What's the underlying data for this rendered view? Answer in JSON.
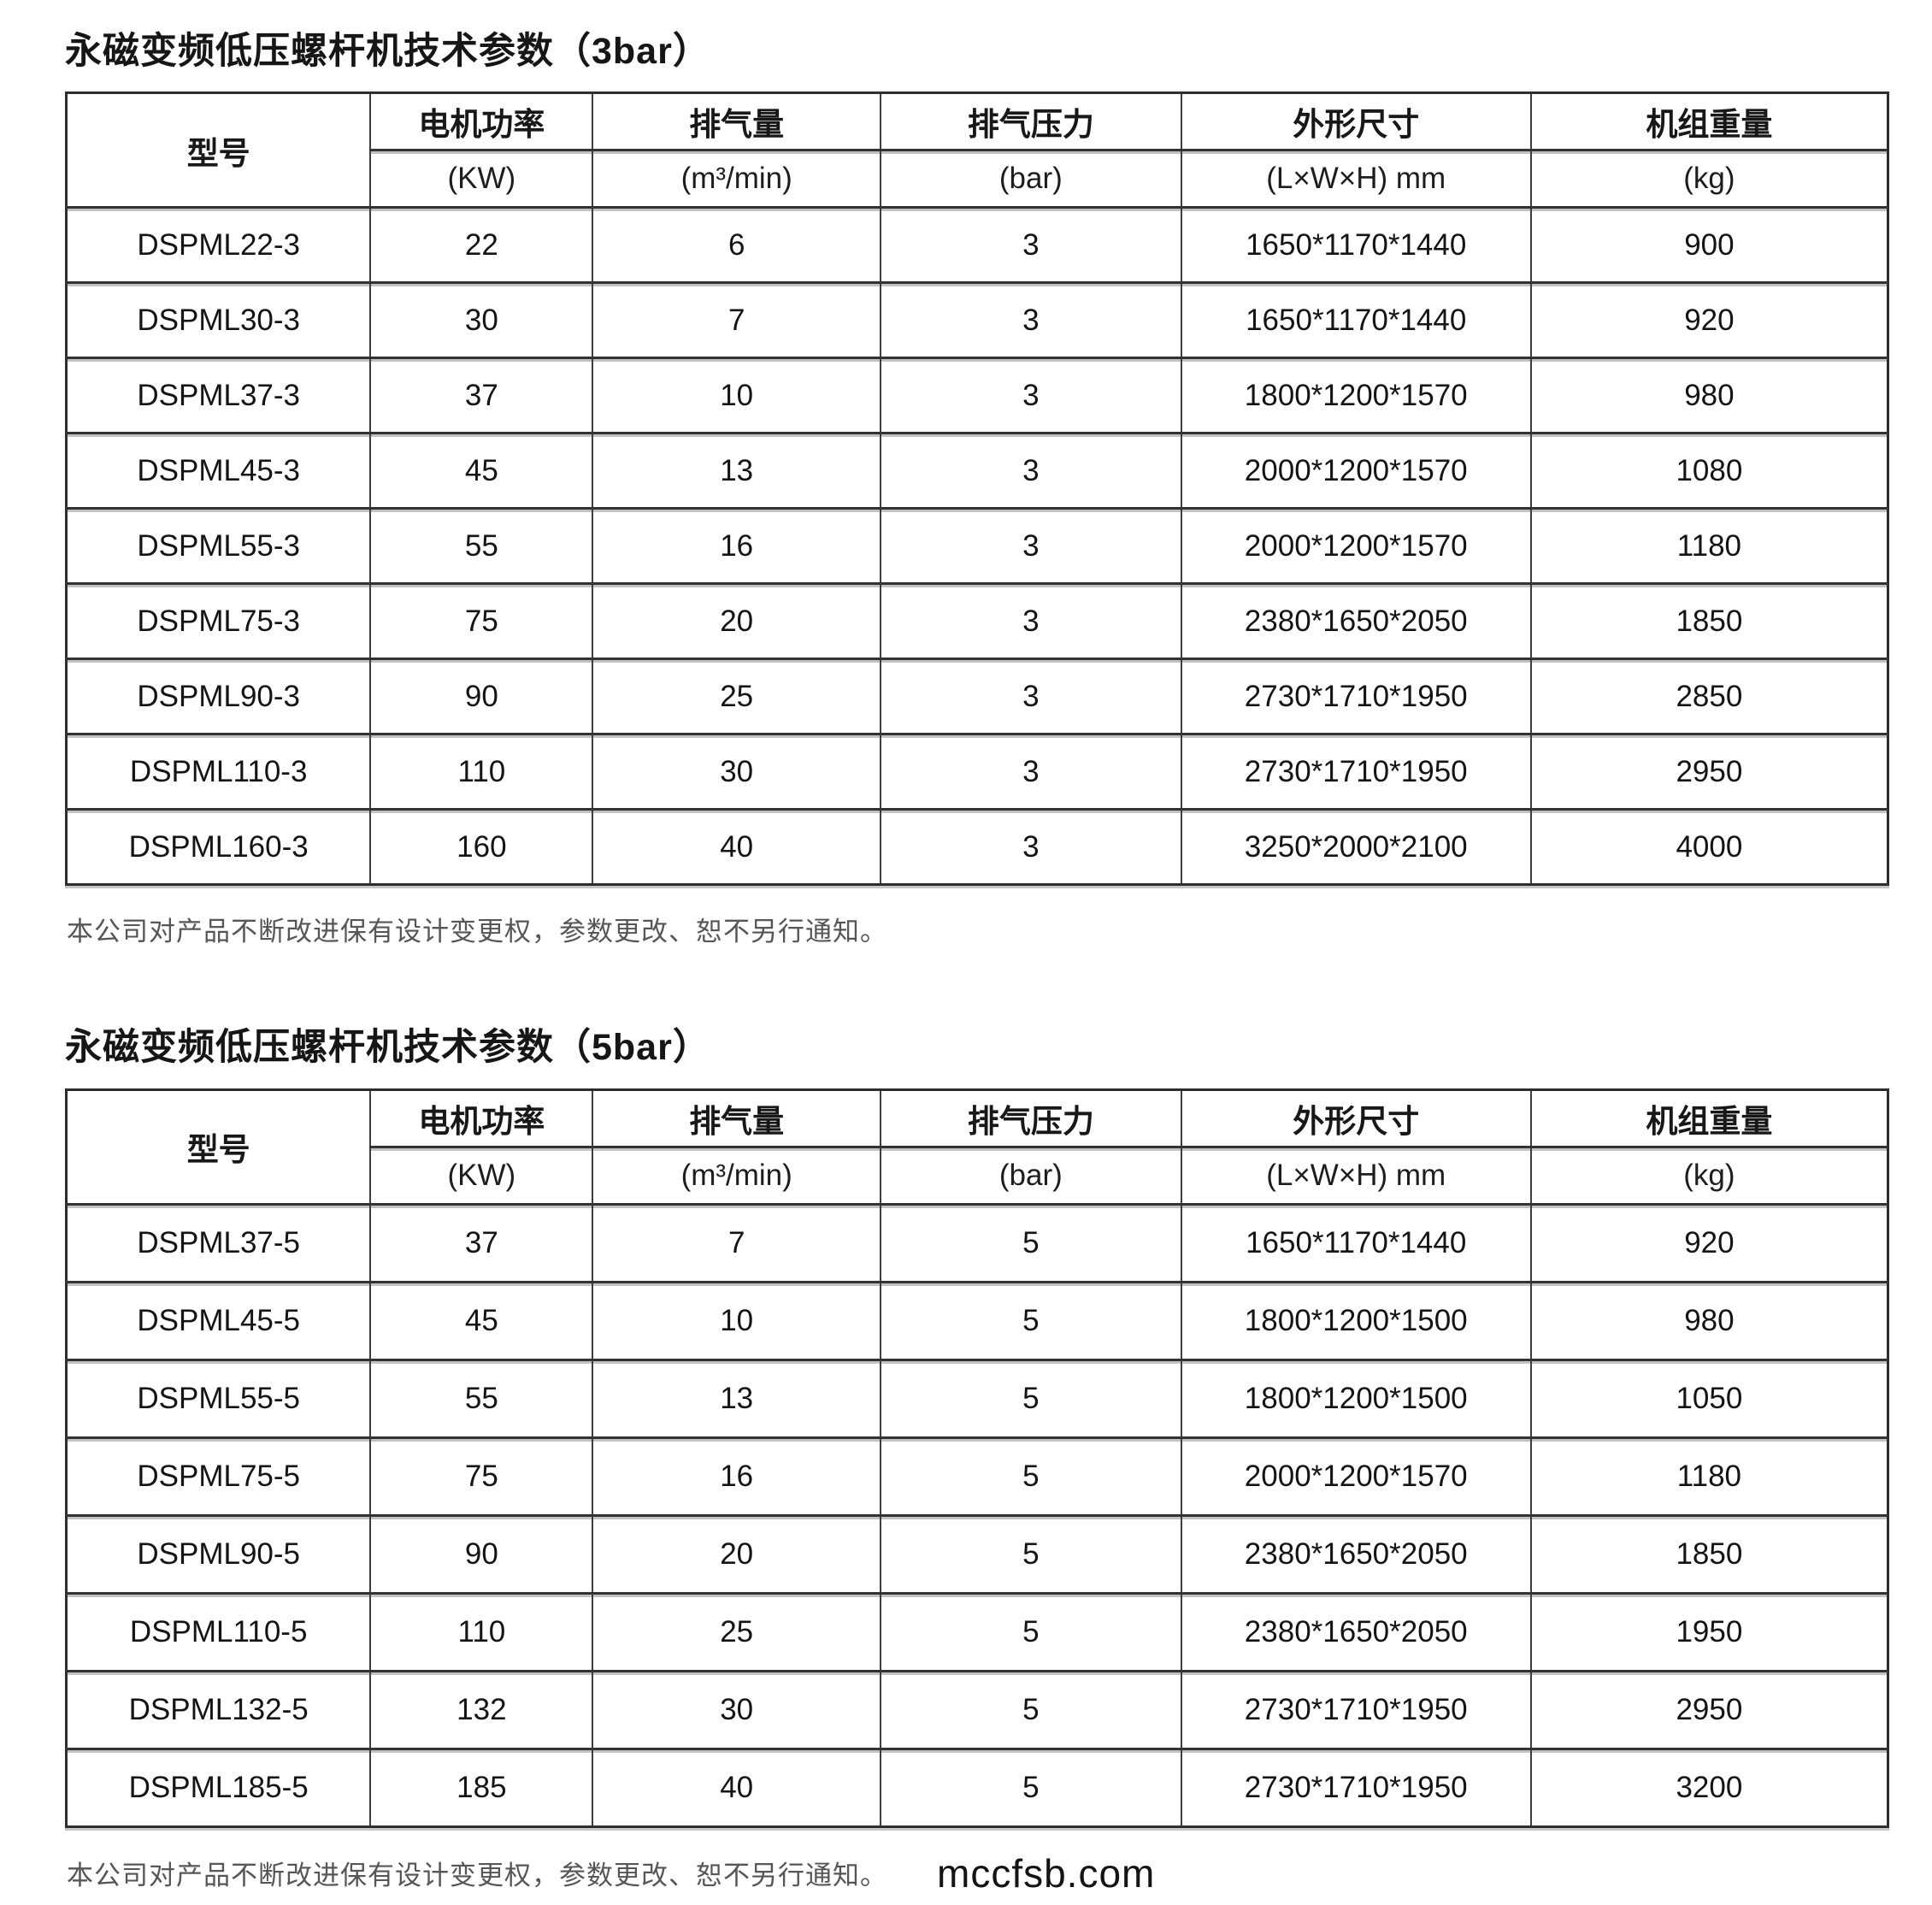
{
  "page": {
    "watermark": "mccfsb.com"
  },
  "columns": [
    {
      "label": "型号",
      "unit": ""
    },
    {
      "label": "电机功率",
      "unit": "(KW)"
    },
    {
      "label": "排气量",
      "unit": "(m³/min)"
    },
    {
      "label": "排气压力",
      "unit": "(bar)"
    },
    {
      "label": "外形尺寸",
      "unit": "(L×W×H) mm"
    },
    {
      "label": "机组重量",
      "unit": "(kg)"
    }
  ],
  "tables": [
    {
      "title": "永磁变频低压螺杆机技术参数（3bar）",
      "note": "本公司对产品不断改进保有设计变更权，参数更改、恕不另行通知。",
      "rows": [
        [
          "DSPML22-3",
          "22",
          "6",
          "3",
          "1650*1170*1440",
          "900"
        ],
        [
          "DSPML30-3",
          "30",
          "7",
          "3",
          "1650*1170*1440",
          "920"
        ],
        [
          "DSPML37-3",
          "37",
          "10",
          "3",
          "1800*1200*1570",
          "980"
        ],
        [
          "DSPML45-3",
          "45",
          "13",
          "3",
          "2000*1200*1570",
          "1080"
        ],
        [
          "DSPML55-3",
          "55",
          "16",
          "3",
          "2000*1200*1570",
          "1180"
        ],
        [
          "DSPML75-3",
          "75",
          "20",
          "3",
          "2380*1650*2050",
          "1850"
        ],
        [
          "DSPML90-3",
          "90",
          "25",
          "3",
          "2730*1710*1950",
          "2850"
        ],
        [
          "DSPML110-3",
          "110",
          "30",
          "3",
          "2730*1710*1950",
          "2950"
        ],
        [
          "DSPML160-3",
          "160",
          "40",
          "3",
          "3250*2000*2100",
          "4000"
        ]
      ]
    },
    {
      "title": "永磁变频低压螺杆机技术参数（5bar）",
      "note": "本公司对产品不断改进保有设计变更权，参数更改、恕不另行通知。",
      "rows": [
        [
          "DSPML37-5",
          "37",
          "7",
          "5",
          "1650*1170*1440",
          "920"
        ],
        [
          "DSPML45-5",
          "45",
          "10",
          "5",
          "1800*1200*1500",
          "980"
        ],
        [
          "DSPML55-5",
          "55",
          "13",
          "5",
          "1800*1200*1500",
          "1050"
        ],
        [
          "DSPML75-5",
          "75",
          "16",
          "5",
          "2000*1200*1570",
          "1180"
        ],
        [
          "DSPML90-5",
          "90",
          "20",
          "5",
          "2380*1650*2050",
          "1850"
        ],
        [
          "DSPML110-5",
          "110",
          "25",
          "5",
          "2380*1650*2050",
          "1950"
        ],
        [
          "DSPML132-5",
          "132",
          "30",
          "5",
          "2730*1710*1950",
          "2950"
        ],
        [
          "DSPML185-5",
          "185",
          "40",
          "5",
          "2730*1710*1950",
          "3200"
        ]
      ]
    }
  ]
}
